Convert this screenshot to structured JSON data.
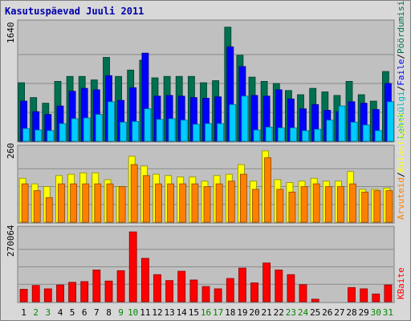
{
  "title": "Kasutuspäevad Juuli 2011",
  "colors": {
    "background": "#d8d8d8",
    "plot": "#c0c0c0",
    "title": "#0000aa",
    "border": "#808080",
    "weekday_label": "#000000",
    "weekend_label": "#008800"
  },
  "days": [
    {
      "label": "1",
      "weekend": false
    },
    {
      "label": "2",
      "weekend": true
    },
    {
      "label": "3",
      "weekend": true
    },
    {
      "label": "4",
      "weekend": false
    },
    {
      "label": "5",
      "weekend": false
    },
    {
      "label": "6",
      "weekend": false
    },
    {
      "label": "7",
      "weekend": false
    },
    {
      "label": "8",
      "weekend": false
    },
    {
      "label": "9",
      "weekend": true
    },
    {
      "label": "10",
      "weekend": true
    },
    {
      "label": "11",
      "weekend": false
    },
    {
      "label": "12",
      "weekend": false
    },
    {
      "label": "13",
      "weekend": false
    },
    {
      "label": "14",
      "weekend": false
    },
    {
      "label": "15",
      "weekend": false
    },
    {
      "label": "16",
      "weekend": true
    },
    {
      "label": "17",
      "weekend": true
    },
    {
      "label": "18",
      "weekend": false
    },
    {
      "label": "19",
      "weekend": false
    },
    {
      "label": "20",
      "weekend": false
    },
    {
      "label": "21",
      "weekend": false
    },
    {
      "label": "22",
      "weekend": false
    },
    {
      "label": "23",
      "weekend": true
    },
    {
      "label": "24",
      "weekend": true
    },
    {
      "label": "25",
      "weekend": false
    },
    {
      "label": "26",
      "weekend": false
    },
    {
      "label": "27",
      "weekend": false
    },
    {
      "label": "28",
      "weekend": false
    },
    {
      "label": "29",
      "weekend": false
    },
    {
      "label": "30",
      "weekend": true
    },
    {
      "label": "31",
      "weekend": true
    }
  ],
  "chart_data": [
    {
      "type": "bar",
      "panel": "top",
      "ylabel": "1640",
      "ylim": [
        0,
        1640
      ],
      "grid": true,
      "legend": [
        {
          "text": "Pöördumisi",
          "color": "#007050"
        },
        {
          "text": "Faile",
          "color": "#0000ff"
        },
        {
          "text": "Lehekülgi",
          "color": "#00bbbb"
        }
      ],
      "categories": [
        "1",
        "2",
        "3",
        "4",
        "5",
        "6",
        "7",
        "8",
        "9",
        "10",
        "11",
        "12",
        "13",
        "14",
        "15",
        "16",
        "17",
        "18",
        "19",
        "20",
        "21",
        "22",
        "23",
        "24",
        "25",
        "26",
        "27",
        "28",
        "29",
        "30",
        "31"
      ],
      "series": [
        {
          "name": "Pöördumisi",
          "color": "#007050",
          "values": [
            830,
            620,
            540,
            850,
            920,
            920,
            870,
            1190,
            920,
            1010,
            1150,
            900,
            920,
            920,
            920,
            830,
            860,
            1620,
            1220,
            910,
            850,
            820,
            720,
            660,
            750,
            700,
            650,
            850,
            660,
            570,
            990
          ]
        },
        {
          "name": "Faile",
          "color": "#0000ff",
          "values": [
            570,
            420,
            380,
            500,
            710,
            750,
            730,
            930,
            580,
            760,
            1250,
            640,
            650,
            640,
            620,
            610,
            630,
            1340,
            1060,
            650,
            640,
            730,
            600,
            460,
            520,
            440,
            420,
            560,
            540,
            450,
            820
          ]
        },
        {
          "name": "Lehekülgi",
          "color": "#00ccff",
          "values": [
            180,
            160,
            150,
            250,
            320,
            330,
            380,
            560,
            270,
            280,
            460,
            310,
            320,
            300,
            240,
            250,
            250,
            520,
            640,
            160,
            200,
            190,
            190,
            150,
            170,
            300,
            500,
            270,
            230,
            150,
            560
          ]
        }
      ]
    },
    {
      "type": "bar",
      "panel": "middle",
      "ylabel": "260",
      "ylim": [
        0,
        260
      ],
      "grid": true,
      "legend": [
        {
          "text": "Külastajaid",
          "color": "#ffff00"
        },
        {
          "text": "Arvuteid",
          "color": "#ff8000"
        }
      ],
      "categories": [
        "1",
        "2",
        "3",
        "4",
        "5",
        "6",
        "7",
        "8",
        "9",
        "10",
        "11",
        "12",
        "13",
        "14",
        "15",
        "16",
        "17",
        "18",
        "19",
        "20",
        "21",
        "22",
        "23",
        "24",
        "25",
        "26",
        "27",
        "28",
        "29",
        "30",
        "31"
      ],
      "series": [
        {
          "name": "Külastajaid",
          "color": "#ffff00",
          "values": [
            160,
            140,
            130,
            170,
            175,
            180,
            180,
            155,
            130,
            240,
            205,
            175,
            170,
            165,
            165,
            150,
            170,
            175,
            210,
            150,
            260,
            155,
            145,
            150,
            160,
            150,
            150,
            185,
            120,
            120,
            125
          ]
        },
        {
          "name": "Arvuteid",
          "color": "#ff8000",
          "values": [
            140,
            115,
            90,
            140,
            140,
            140,
            140,
            140,
            130,
            210,
            170,
            140,
            140,
            140,
            140,
            130,
            140,
            150,
            175,
            120,
            235,
            120,
            110,
            130,
            140,
            130,
            130,
            140,
            110,
            115,
            115
          ]
        }
      ]
    },
    {
      "type": "bar",
      "panel": "bottom",
      "ylabel": "270064",
      "ylim": [
        0,
        270064
      ],
      "grid": true,
      "legend": [
        {
          "text": "KBaite",
          "color": "#ff0000"
        }
      ],
      "categories": [
        "1",
        "2",
        "3",
        "4",
        "5",
        "6",
        "7",
        "8",
        "9",
        "10",
        "11",
        "12",
        "13",
        "14",
        "15",
        "16",
        "17",
        "18",
        "19",
        "20",
        "21",
        "22",
        "23",
        "24",
        "25",
        "26",
        "27",
        "28",
        "29",
        "30",
        "31"
      ],
      "series": [
        {
          "name": "KBaite",
          "color": "#ff0000",
          "values": [
            48000,
            63000,
            50000,
            65000,
            75000,
            78000,
            123000,
            80000,
            120000,
            270064,
            168000,
            105000,
            82000,
            118000,
            84000,
            59000,
            50000,
            90000,
            130000,
            73000,
            150000,
            123000,
            105000,
            66000,
            10000,
            0,
            0,
            55000,
            50000,
            30000,
            65000
          ]
        }
      ]
    }
  ]
}
